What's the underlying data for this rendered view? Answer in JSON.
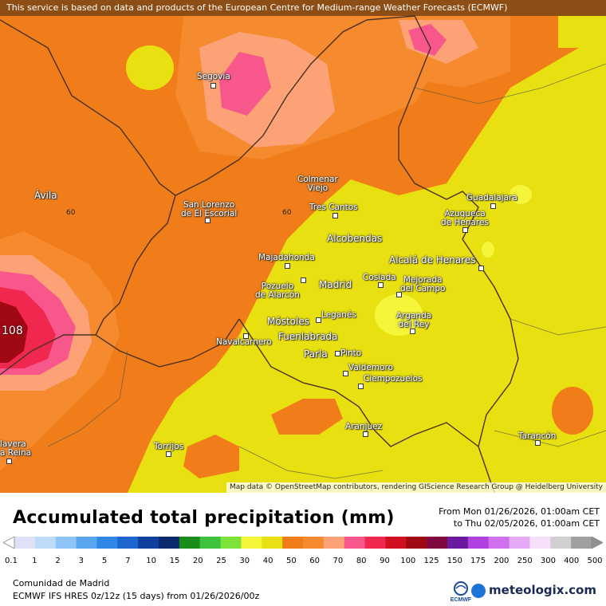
{
  "banner": "This service is based on data and products of the European Centre for Medium-range Weather Forecasts (ECMWF)",
  "attribution": "Map data © OpenStreetMap contributors, rendering GIScience Research Group @ Heidelberg University",
  "title": "Accumulated total precipitation (mm)",
  "period": {
    "from": "From Mon 01/26/2026, 01:00am CET",
    "to": "to Thu 02/05/2026, 01:00am CET"
  },
  "region": "Comunidad de Madrid",
  "model": "ECMWF IFS HRES 0z/12z (15 days) from 01/26/2026/00z",
  "brand": "meteologix.com",
  "ecmwf_logo_text": "ECMWF",
  "max_label": "108",
  "contour_labels": [
    "60",
    "60"
  ],
  "cities": [
    {
      "name": "Segovia"
    },
    {
      "name": "Ávila"
    },
    {
      "name": "San Lorenzo\nde El Escorial"
    },
    {
      "name": "Colmenar\nViejo"
    },
    {
      "name": "Tres Cantos"
    },
    {
      "name": "Guadalajara"
    },
    {
      "name": "Azuqueca\nde Henares"
    },
    {
      "name": "Alcobendas"
    },
    {
      "name": "Majadahonda"
    },
    {
      "name": "Alcalá de Henares"
    },
    {
      "name": "Pozuelo\nde Alarcón"
    },
    {
      "name": "Madrid"
    },
    {
      "name": "Coslada"
    },
    {
      "name": "Mejorada\ndel Campo"
    },
    {
      "name": "Arganda\ndel Rey"
    },
    {
      "name": "Leganés"
    },
    {
      "name": "Móstoles"
    },
    {
      "name": "Fuenlabrada"
    },
    {
      "name": "Navalcarnero"
    },
    {
      "name": "Parla"
    },
    {
      "name": "Pinto"
    },
    {
      "name": "Valdemoro"
    },
    {
      "name": "Ciempozuelos"
    },
    {
      "name": "Aranjuez"
    },
    {
      "name": "Tarancón"
    },
    {
      "name": "Torrijos"
    },
    {
      "name": "lavera\na Reina"
    }
  ],
  "legend": {
    "ticks": [
      "0.1",
      "1",
      "2",
      "3",
      "5",
      "7",
      "10",
      "15",
      "20",
      "25",
      "30",
      "40",
      "50",
      "60",
      "70",
      "80",
      "90",
      "100",
      "125",
      "150",
      "175",
      "200",
      "250",
      "300",
      "400",
      "500"
    ],
    "colors": [
      "#e0e0f6",
      "#bcdcfa",
      "#8ec4f5",
      "#5aa6ef",
      "#2f87e6",
      "#1e66cf",
      "#103f9e",
      "#0a2a70",
      "#1a8c1a",
      "#3cc23c",
      "#7de23a",
      "#f5f53a",
      "#e8e010",
      "#f07d1a",
      "#f58a2e",
      "#fca276",
      "#f8578c",
      "#f02850",
      "#d01020",
      "#a00814",
      "#800a40",
      "#6a1a9e",
      "#b040e0",
      "#d070ee",
      "#e6aaf4",
      "#f6e0fa",
      "#d0d0d0",
      "#a0a0a0"
    ]
  }
}
